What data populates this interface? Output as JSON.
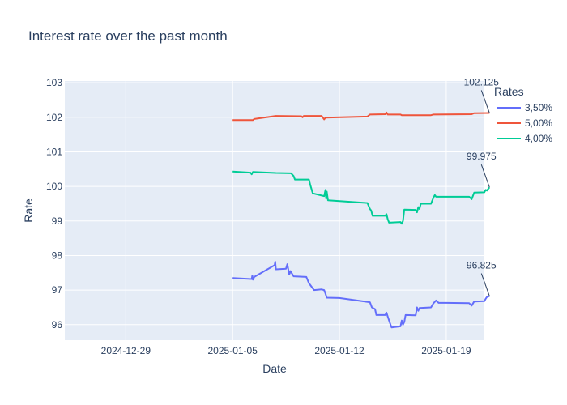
{
  "chart_data": {
    "type": "line",
    "title": "Interest rate over the past month",
    "xlabel": "Date",
    "ylabel": "Rate",
    "xlim": [
      "2024-12-25",
      "2025-01-21T12:00"
    ],
    "ylim": [
      95.55,
      103.05
    ],
    "x_ticks": [
      "2024-12-29",
      "2025-01-05",
      "2025-01-12",
      "2025-01-19"
    ],
    "y_ticks": [
      96,
      97,
      98,
      99,
      100,
      101,
      102,
      103
    ],
    "grid": true,
    "legend": {
      "title": "Rates",
      "position": "right"
    },
    "series": [
      {
        "name": "3,50%",
        "color": "#636efa",
        "points": [
          [
            "2025-01-05T00:00",
            97.35
          ],
          [
            "2025-01-06T06:00",
            97.32
          ],
          [
            "2025-01-06T07:00",
            97.42
          ],
          [
            "2025-01-06T08:00",
            97.3
          ],
          [
            "2025-01-06T10:00",
            97.38
          ],
          [
            "2025-01-07T18:00",
            97.72
          ],
          [
            "2025-01-07T19:00",
            97.82
          ],
          [
            "2025-01-07T20:00",
            97.6
          ],
          [
            "2025-01-08T12:00",
            97.62
          ],
          [
            "2025-01-08T14:00",
            97.75
          ],
          [
            "2025-01-08T17:00",
            97.45
          ],
          [
            "2025-01-08T19:00",
            97.55
          ],
          [
            "2025-01-09T00:00",
            97.4
          ],
          [
            "2025-01-09T20:00",
            97.38
          ],
          [
            "2025-01-10T00:00",
            97.2
          ],
          [
            "2025-01-10T08:00",
            97.0
          ],
          [
            "2025-01-10T20:00",
            97.02
          ],
          [
            "2025-01-11T00:00",
            97.0
          ],
          [
            "2025-01-11T02:00",
            96.9
          ],
          [
            "2025-01-11T04:00",
            96.78
          ],
          [
            "2025-01-12T00:00",
            96.77
          ],
          [
            "2025-01-14T00:00",
            96.65
          ],
          [
            "2025-01-14T03:00",
            96.5
          ],
          [
            "2025-01-14T08:00",
            96.45
          ],
          [
            "2025-01-14T10:00",
            96.28
          ],
          [
            "2025-01-15T00:00",
            96.28
          ],
          [
            "2025-01-15T02:00",
            96.35
          ],
          [
            "2025-01-15T06:00",
            96.12
          ],
          [
            "2025-01-15T10:00",
            95.92
          ],
          [
            "2025-01-16T00:00",
            95.95
          ],
          [
            "2025-01-16T02:00",
            96.12
          ],
          [
            "2025-01-16T04:00",
            96.0
          ],
          [
            "2025-01-16T06:00",
            96.08
          ],
          [
            "2025-01-16T08:00",
            96.28
          ],
          [
            "2025-01-17T00:00",
            96.27
          ],
          [
            "2025-01-17T02:00",
            96.5
          ],
          [
            "2025-01-17T04:00",
            96.4
          ],
          [
            "2025-01-17T06:00",
            96.48
          ],
          [
            "2025-01-18T00:00",
            96.5
          ],
          [
            "2025-01-18T04:00",
            96.62
          ],
          [
            "2025-01-18T08:00",
            96.7
          ],
          [
            "2025-01-18T12:00",
            96.63
          ],
          [
            "2025-01-19T00:00",
            96.63
          ],
          [
            "2025-01-20T12:00",
            96.62
          ],
          [
            "2025-01-20T16:00",
            96.55
          ],
          [
            "2025-01-20T20:00",
            96.67
          ],
          [
            "2025-01-21T12:00",
            96.68
          ],
          [
            "2025-01-21T14:00",
            96.75
          ],
          [
            "2025-01-21T16:00",
            96.8
          ],
          [
            "2025-01-21T20:00",
            96.825
          ]
        ]
      },
      {
        "name": "5,00%",
        "color": "#ef553b",
        "points": [
          [
            "2025-01-05T00:00",
            101.92
          ],
          [
            "2025-01-06T08:00",
            101.92
          ],
          [
            "2025-01-06T10:00",
            101.95
          ],
          [
            "2025-01-07T20:00",
            102.04
          ],
          [
            "2025-01-09T12:00",
            102.03
          ],
          [
            "2025-01-09T14:00",
            102.0
          ],
          [
            "2025-01-09T16:00",
            102.04
          ],
          [
            "2025-01-10T20:00",
            102.04
          ],
          [
            "2025-01-11T00:00",
            101.94
          ],
          [
            "2025-01-11T02:00",
            101.99
          ],
          [
            "2025-01-13T20:00",
            102.02
          ],
          [
            "2025-01-14T00:00",
            102.08
          ],
          [
            "2025-01-15T00:00",
            102.09
          ],
          [
            "2025-01-15T02:00",
            102.14
          ],
          [
            "2025-01-15T04:00",
            102.08
          ],
          [
            "2025-01-16T00:00",
            102.08
          ],
          [
            "2025-01-16T02:00",
            102.06
          ],
          [
            "2025-01-18T00:00",
            102.06
          ],
          [
            "2025-01-18T04:00",
            102.08
          ],
          [
            "2025-01-20T16:00",
            102.09
          ],
          [
            "2025-01-20T20:00",
            102.12
          ],
          [
            "2025-01-21T20:00",
            102.125
          ]
        ]
      },
      {
        "name": "4,00%",
        "color": "#00cc96",
        "points": [
          [
            "2025-01-05T00:00",
            100.43
          ],
          [
            "2025-01-06T04:00",
            100.4
          ],
          [
            "2025-01-06T06:00",
            100.35
          ],
          [
            "2025-01-06T08:00",
            100.42
          ],
          [
            "2025-01-07T20:00",
            100.39
          ],
          [
            "2025-01-08T20:00",
            100.38
          ],
          [
            "2025-01-09T00:00",
            100.3
          ],
          [
            "2025-01-09T02:00",
            100.2
          ],
          [
            "2025-01-10T00:00",
            100.2
          ],
          [
            "2025-01-10T02:00",
            100.05
          ],
          [
            "2025-01-10T06:00",
            99.8
          ],
          [
            "2025-01-11T00:00",
            99.72
          ],
          [
            "2025-01-11T02:00",
            99.9
          ],
          [
            "2025-01-11T03:00",
            99.65
          ],
          [
            "2025-01-11T04:00",
            99.85
          ],
          [
            "2025-01-11T06:00",
            99.6
          ],
          [
            "2025-01-13T20:00",
            99.52
          ],
          [
            "2025-01-14T00:00",
            99.35
          ],
          [
            "2025-01-14T02:00",
            99.3
          ],
          [
            "2025-01-14T04:00",
            99.15
          ],
          [
            "2025-01-15T00:00",
            99.15
          ],
          [
            "2025-01-15T02:00",
            99.2
          ],
          [
            "2025-01-15T04:00",
            99.05
          ],
          [
            "2025-01-15T06:00",
            98.95
          ],
          [
            "2025-01-16T00:00",
            98.97
          ],
          [
            "2025-01-16T02:00",
            98.92
          ],
          [
            "2025-01-16T04:00",
            99.0
          ],
          [
            "2025-01-16T06:00",
            99.33
          ],
          [
            "2025-01-17T00:00",
            99.32
          ],
          [
            "2025-01-17T02:00",
            99.25
          ],
          [
            "2025-01-17T04:00",
            99.4
          ],
          [
            "2025-01-17T06:00",
            99.35
          ],
          [
            "2025-01-17T08:00",
            99.5
          ],
          [
            "2025-01-18T00:00",
            99.5
          ],
          [
            "2025-01-18T04:00",
            99.68
          ],
          [
            "2025-01-18T06:00",
            99.75
          ],
          [
            "2025-01-18T08:00",
            99.7
          ],
          [
            "2025-01-20T12:00",
            99.7
          ],
          [
            "2025-01-20T16:00",
            99.63
          ],
          [
            "2025-01-20T20:00",
            99.82
          ],
          [
            "2025-01-21T12:00",
            99.83
          ],
          [
            "2025-01-21T14:00",
            99.9
          ],
          [
            "2025-01-21T16:00",
            99.88
          ],
          [
            "2025-01-21T20:00",
            99.975
          ]
        ]
      }
    ],
    "annotations": [
      {
        "text": "102.125",
        "x": "2025-01-21T20:00",
        "y": 102.125
      },
      {
        "text": "99.975",
        "x": "2025-01-21T20:00",
        "y": 99.975
      },
      {
        "text": "96.825",
        "x": "2025-01-21T20:00",
        "y": 96.825
      }
    ]
  }
}
